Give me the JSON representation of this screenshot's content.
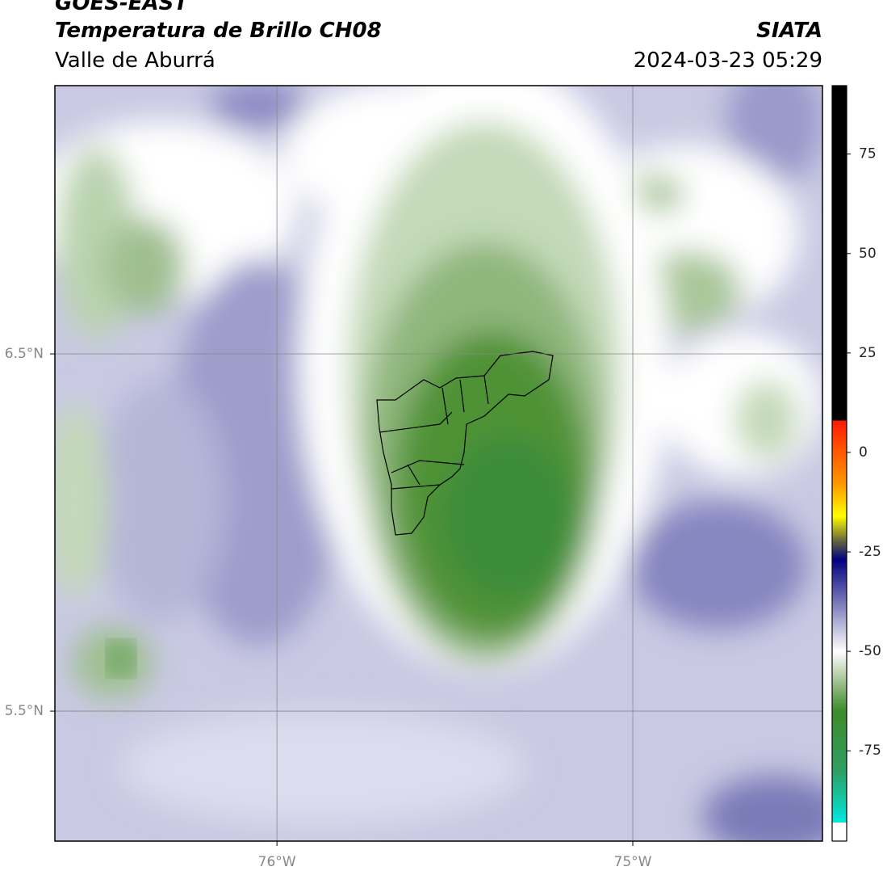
{
  "chart_data": {
    "type": "map",
    "title": "GOES-EAST",
    "subtitle": "Temperatura de Brillo CH08",
    "region": "Valle de Aburrá",
    "source": "SIATA",
    "datetime": "2024-03-23 05:29",
    "xlim": [
      -76.624,
      -74.467
    ],
    "ylim": [
      5.136,
      7.251
    ],
    "xticks": [
      {
        "value": -76,
        "label": "76°W"
      },
      {
        "value": -75,
        "label": "75°W"
      }
    ],
    "yticks": [
      {
        "value": 6.5,
        "label": "6.5°N"
      },
      {
        "value": 5.5,
        "label": "5.5°N"
      }
    ],
    "grid": true,
    "colorbar": {
      "lim": [
        -97.7,
        92.2
      ],
      "ticks": [
        75,
        50,
        25,
        0,
        -25,
        -50,
        -75
      ],
      "stops": [
        {
          "value": -97.7,
          "color": "#ffffff"
        },
        {
          "value": -93,
          "color": "#ffffff"
        },
        {
          "value": -93,
          "color": "#00e8dc"
        },
        {
          "value": -80,
          "color": "#2f9e62"
        },
        {
          "value": -65,
          "color": "#3d8a2a"
        },
        {
          "value": -57,
          "color": "#a9c79a"
        },
        {
          "value": -50,
          "color": "#ffffff"
        },
        {
          "value": -42,
          "color": "#a8a8d0"
        },
        {
          "value": -32,
          "color": "#3a3a9a"
        },
        {
          "value": -27,
          "color": "#000080"
        },
        {
          "value": -22,
          "color": "#6b6b3a"
        },
        {
          "value": -16,
          "color": "#ffff00"
        },
        {
          "value": -8,
          "color": "#ff9900"
        },
        {
          "value": 8,
          "color": "#ff1a00"
        },
        {
          "value": 8,
          "color": "#000000"
        },
        {
          "value": 92.2,
          "color": "#000000"
        }
      ]
    }
  }
}
